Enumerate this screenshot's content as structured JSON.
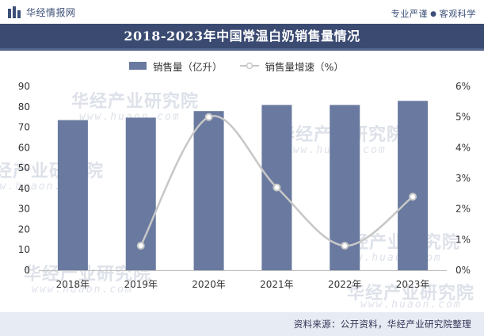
{
  "header": {
    "brand_name": "华经情报网",
    "slogan_left": "专业严谨",
    "slogan_right": "客观科学"
  },
  "chart_data": {
    "type": "bar",
    "title": "2018-2023年中国常温白奶销售量情况",
    "categories": [
      "2018年",
      "2019年",
      "2020年",
      "2021年",
      "2022年",
      "2023年"
    ],
    "series": [
      {
        "name": "销售量（亿升）",
        "type": "bar",
        "axis": "left",
        "color": "#69799f",
        "values": [
          73.5,
          74.7,
          77.9,
          80.9,
          80.9,
          82.9
        ]
      },
      {
        "name": "销售量增速（%）",
        "type": "line",
        "axis": "right",
        "color": "#c7c7c7",
        "smooth": true,
        "values": [
          null,
          0.8,
          5.0,
          2.7,
          0.8,
          2.4
        ]
      }
    ],
    "y_left": {
      "min": 0,
      "max": 90,
      "step": 10,
      "tick_labels": [
        "0",
        "10",
        "20",
        "30",
        "40",
        "50",
        "60",
        "70",
        "80",
        "90"
      ]
    },
    "y_right": {
      "min": 0,
      "max": 6,
      "step": 1,
      "tick_labels": [
        "0%",
        "1%",
        "2%",
        "3%",
        "4%",
        "5%",
        "6%"
      ]
    },
    "grid": false,
    "legend_position": "top-center"
  },
  "legend": {
    "bar_label": "销售量（亿升）",
    "line_label": "销售量增速（%）"
  },
  "watermark": {
    "text": "华经产业研究院",
    "url": "www.huaon.com"
  },
  "footer": {
    "source": "资料来源：公开资料，华经产业研究院整理"
  }
}
